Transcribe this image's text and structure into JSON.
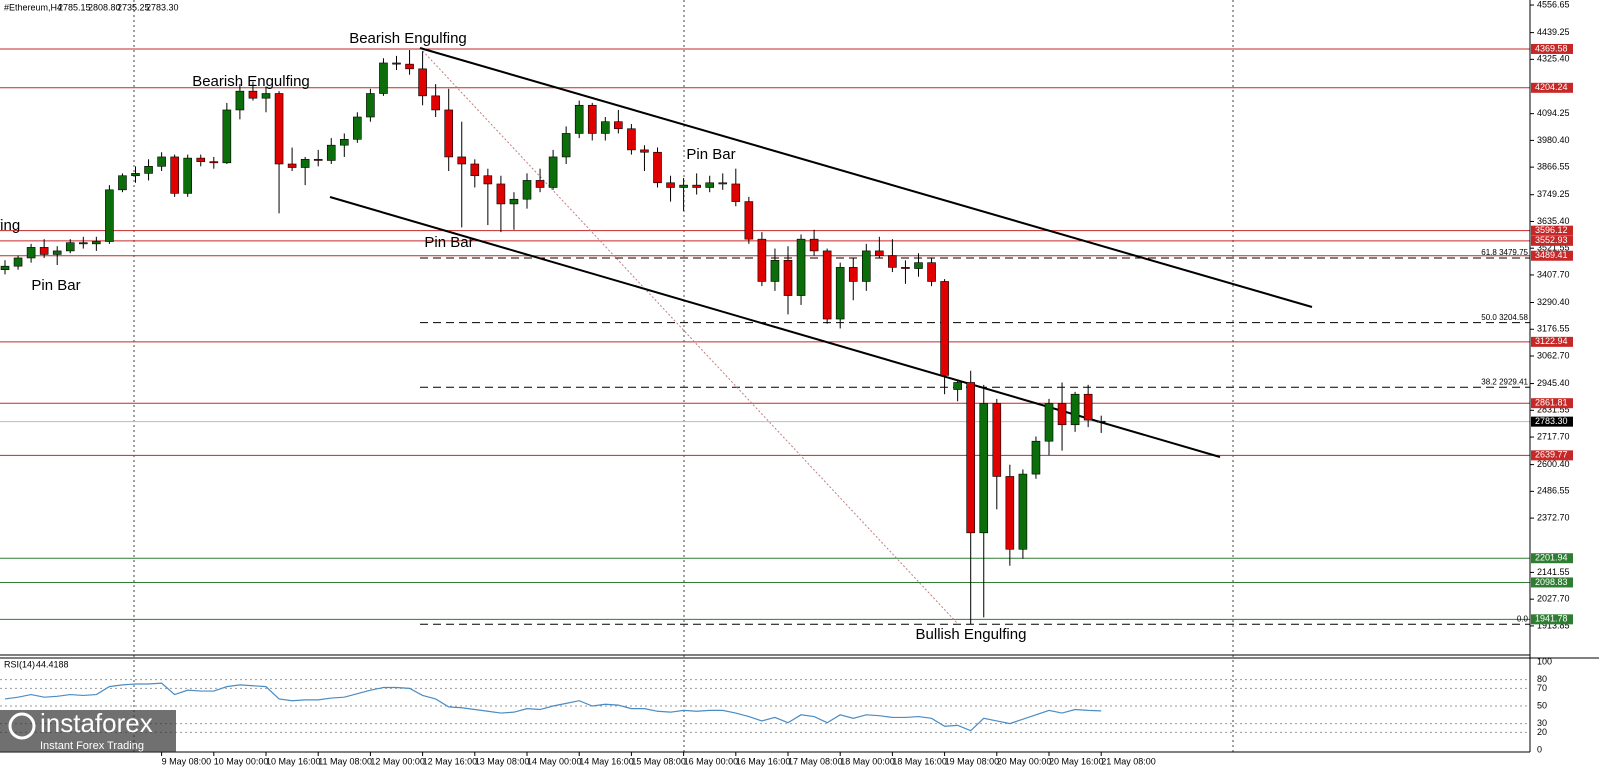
{
  "chart_data": {
    "type": "candlestick",
    "title": "#Ethereum,H4",
    "header_values": [
      2785.15,
      2808.8,
      2735.25,
      2783.3
    ],
    "header_value_labels": [
      "2785.15",
      "2808.80",
      "2735.25",
      "2783.30"
    ],
    "categories": [
      null,
      null,
      null,
      null,
      null,
      null,
      null,
      null,
      null,
      null,
      null,
      null,
      "9 May 08:00",
      null,
      null,
      null,
      "10 May 00:00",
      null,
      null,
      null,
      "10 May 16:00",
      null,
      null,
      null,
      "11 May 08:00",
      null,
      null,
      null,
      "12 May 00:00",
      null,
      null,
      null,
      "12 May 16:00",
      null,
      null,
      null,
      "13 May 08:00",
      null,
      null,
      null,
      "14 May 00:00",
      null,
      null,
      null,
      "14 May 16:00",
      null,
      null,
      null,
      "15 May 08:00",
      null,
      null,
      null,
      "16 May 00:00",
      null,
      null,
      null,
      "16 May 16:00",
      null,
      null,
      null,
      "17 May 08:00",
      null,
      null,
      null,
      "18 May 00:00",
      null,
      null,
      null,
      "18 May 16:00",
      null,
      null,
      null,
      "19 May 08:00",
      null,
      null,
      null,
      "20 May 00:00",
      null,
      null,
      null,
      "20 May 16:00",
      null,
      null,
      null,
      "21 May 08:00"
    ],
    "open": [
      3430,
      3445,
      3480,
      3525,
      3495,
      3510,
      3545,
      3540,
      3550,
      3770,
      3830,
      3840,
      3870,
      3910,
      3755,
      3905,
      3890,
      3885,
      4110,
      4190,
      4160,
      4180,
      3880,
      3865,
      3900,
      3895,
      3960,
      3985,
      4080,
      4180,
      4310,
      4305,
      4285,
      4170,
      4110,
      3910,
      3880,
      3830,
      3795,
      3710,
      3730,
      3810,
      3780,
      3910,
      4010,
      4130,
      4010,
      4060,
      4030,
      3940,
      3930,
      3800,
      3780,
      3790,
      3780,
      3800,
      3795,
      3720,
      3560,
      3380,
      3470,
      3320,
      3560,
      3510,
      3220,
      3440,
      3380,
      3510,
      3490,
      3440,
      3435,
      3460,
      3380,
      2920,
      2950,
      2310,
      2860,
      2550,
      2240,
      2560,
      2700,
      2860,
      2770,
      2900,
      2785.15
    ],
    "high": [
      3470,
      3490,
      3540,
      3560,
      3530,
      3560,
      3570,
      3570,
      3790,
      3840,
      3870,
      3900,
      3930,
      3920,
      3920,
      3920,
      3910,
      4140,
      4220,
      4230,
      4210,
      4190,
      3950,
      3910,
      3940,
      3990,
      4010,
      4100,
      4200,
      4330,
      4340,
      4365,
      4360,
      4220,
      4200,
      4060,
      3900,
      3860,
      3830,
      3760,
      3840,
      3860,
      3940,
      4040,
      4150,
      4140,
      4080,
      4110,
      4050,
      3960,
      3950,
      3830,
      3820,
      3840,
      3830,
      3840,
      3860,
      3740,
      3590,
      3520,
      3530,
      3580,
      3600,
      3520,
      3460,
      3480,
      3540,
      3570,
      3560,
      3470,
      3500,
      3480,
      3390,
      2960,
      3000,
      2940,
      2880,
      2600,
      2580,
      2720,
      2880,
      2950,
      2910,
      2940,
      2808.8
    ],
    "low": [
      3410,
      3430,
      3460,
      3480,
      3450,
      3500,
      3520,
      3510,
      3540,
      3760,
      3800,
      3810,
      3850,
      3740,
      3740,
      3870,
      3860,
      3880,
      4070,
      4150,
      4100,
      3670,
      3850,
      3790,
      3870,
      3880,
      3910,
      3970,
      4060,
      4170,
      4280,
      4260,
      4130,
      4080,
      3850,
      3610,
      3780,
      3620,
      3590,
      3600,
      3690,
      3760,
      3770,
      3880,
      3990,
      3980,
      3980,
      4010,
      3920,
      3850,
      3780,
      3720,
      3680,
      3750,
      3760,
      3770,
      3700,
      3540,
      3360,
      3340,
      3240,
      3280,
      3490,
      3200,
      3180,
      3300,
      3340,
      3480,
      3420,
      3370,
      3400,
      3360,
      2900,
      2870,
      1921,
      1950,
      2410,
      2170,
      2200,
      2540,
      2640,
      2660,
      2740,
      2760,
      2735.25
    ],
    "close": [
      3445,
      3480,
      3525,
      3495,
      3510,
      3545,
      3540,
      3550,
      3770,
      3830,
      3840,
      3870,
      3910,
      3755,
      3905,
      3890,
      3885,
      4110,
      4190,
      4160,
      4180,
      3880,
      3865,
      3900,
      3895,
      3960,
      3985,
      4080,
      4180,
      4310,
      4305,
      4285,
      4170,
      4110,
      3910,
      3880,
      3830,
      3795,
      3710,
      3730,
      3810,
      3780,
      3910,
      4010,
      4130,
      4010,
      4060,
      4030,
      3940,
      3930,
      3800,
      3780,
      3790,
      3780,
      3800,
      3795,
      3720,
      3560,
      3380,
      3470,
      3320,
      3560,
      3510,
      3220,
      3440,
      3380,
      3510,
      3490,
      3440,
      3435,
      3460,
      3380,
      2980,
      2950,
      2310,
      2860,
      2550,
      2240,
      2560,
      2700,
      2860,
      2770,
      2900,
      2790,
      2783.3
    ],
    "up_color": "#0b6e0b",
    "down_color": "#e00000",
    "ylim": [
      1790,
      4578
    ],
    "yticks": [
      4556.65,
      4439.25,
      {
        "value": 4325.4,
        "label": "4325.40"
      },
      4094.25,
      {
        "value": 3980.4,
        "label": "3980.40"
      },
      3866.55,
      3749.25,
      {
        "value": 3635.4,
        "label": "3635.40"
      },
      3521.55,
      {
        "value": 3407.7,
        "label": "3407.70"
      },
      {
        "value": 3290.4,
        "label": "3290.40"
      },
      3176.55,
      {
        "value": 3062.7,
        "label": "3062.70"
      },
      {
        "value": 2945.4,
        "label": "2945.40"
      },
      2831.55,
      {
        "value": 2717.7,
        "label": "2717.70"
      },
      {
        "value": 2600.4,
        "label": "2600.40"
      },
      2486.55,
      {
        "value": 2372.7,
        "label": "2372.70"
      },
      2141.55,
      {
        "value": 2027.7,
        "label": "2027.70"
      },
      1913.85
    ],
    "levels": [
      {
        "value": 4369.58,
        "color": "#c62828"
      },
      {
        "value": 4204.24,
        "color": "#c62828"
      },
      {
        "value": 3596.12,
        "color": "#c62828"
      },
      {
        "value": 3552.93,
        "color": "#c62828"
      },
      {
        "value": 3489.41,
        "color": "#c62828"
      },
      {
        "value": 3122.94,
        "color": "#c62828"
      },
      {
        "value": 2861.81,
        "color": "#c62828"
      },
      {
        "value": 2639.77,
        "color": "#c62828"
      },
      {
        "value": 2201.94,
        "color": "#2e7d32"
      },
      {
        "value": 2098.83,
        "color": "#2e7d32"
      },
      {
        "value": 1941.78,
        "color": "#2e7d32"
      }
    ],
    "current_price": {
      "value": 2783.3,
      "label": "2783.30"
    },
    "fib_levels": [
      {
        "value": 3479.75,
        "label": "61.8 3479.75"
      },
      {
        "value": 3204.58,
        "label": "50.0 3204.58"
      },
      {
        "value": 2929.41,
        "label": "38.2 2929.41"
      },
      {
        "value": 1921,
        "label": "0.0"
      }
    ],
    "annotations": [
      "Bearish Engulfing",
      "Bearish Engulfing",
      "Pin Bar",
      "Pin Bar",
      "Pin Bar",
      "fing",
      "Bullish  Engulfing"
    ],
    "rsi": {
      "label": "RSI(14)",
      "value": 44.4188,
      "color": "#4a8cc4",
      "values": [
        58,
        60,
        63,
        60,
        61,
        63,
        62,
        63,
        72,
        74,
        75,
        75,
        76,
        63,
        68,
        67,
        67,
        72,
        74,
        73,
        72,
        58,
        56,
        57,
        57,
        59,
        60,
        64,
        68,
        71,
        71,
        70,
        62,
        58,
        49,
        48,
        46,
        44,
        42,
        43,
        47,
        46,
        50,
        53,
        56,
        50,
        52,
        51,
        47,
        47,
        44,
        43,
        45,
        44,
        45,
        45,
        42,
        38,
        33,
        37,
        31,
        40,
        38,
        31,
        40,
        36,
        40,
        39,
        37,
        37,
        38,
        36,
        27,
        28,
        22,
        36,
        33,
        30,
        35,
        40,
        45,
        42,
        46,
        45,
        44.4188
      ],
      "ylim": [
        0,
        100
      ],
      "yticks": [
        100,
        80,
        70,
        50,
        30,
        20,
        0
      ]
    }
  },
  "logo": {
    "name": "instaforex",
    "tagline": "Instant Forex Trading"
  }
}
